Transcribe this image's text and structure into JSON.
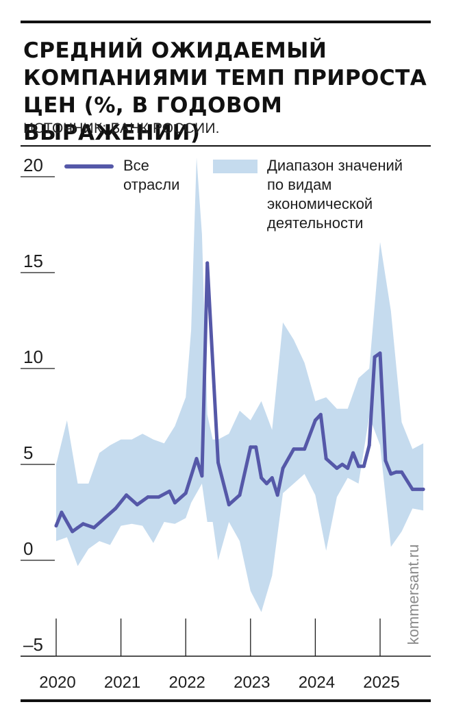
{
  "title": "СРЕДНИЙ ОЖИДАЕМЫЙ КОМПАНИЯМИ ТЕМП ПРИРОСТА ЦЕН (%, В ГОДОВОМ ВЫРАЖЕНИИ)",
  "source": "ИСТОЧНИК: БАНК РОССИИ.",
  "watermark": "kommersant.ru",
  "colors": {
    "line": "#5558a8",
    "band": "#c5dbee",
    "text": "#1e1e1e"
  },
  "chart_data": {
    "type": "line",
    "title": "СРЕДНИЙ ОЖИДАЕМЫЙ КОМПАНИЯМИ ТЕМП ПРИРОСТА ЦЕН (%, В ГОДОВОМ ВЫРАЖЕНИИ)",
    "xlabel": "",
    "ylabel": "",
    "x_ticks": [
      "2020",
      "2021",
      "2022",
      "2023",
      "2024",
      "2025"
    ],
    "y_ticks": [
      20,
      15,
      10,
      5,
      0,
      -5
    ],
    "y_tick_labels": [
      "20",
      "15",
      "10",
      "5",
      "0",
      "–5"
    ],
    "ylim": [
      -5,
      20
    ],
    "xlim": [
      "2020-01",
      "2025-09"
    ],
    "grid": false,
    "legend_position": "top",
    "series": [
      {
        "name": "Все отрасли",
        "legend_label_lines": [
          "Все",
          "отрасли"
        ],
        "kind": "line",
        "x": [
          "2020-01",
          "2020-02",
          "2020-04",
          "2020-05",
          "2020-06",
          "2020-08",
          "2020-10",
          "2020-12",
          "2021-02",
          "2021-04",
          "2021-06",
          "2021-08",
          "2021-10",
          "2021-11",
          "2022-01",
          "2022-03",
          "2022-04",
          "2022-05",
          "2022-07",
          "2022-09",
          "2022-11",
          "2023-01",
          "2023-02",
          "2023-03",
          "2023-04",
          "2023-05",
          "2023-06",
          "2023-07",
          "2023-09",
          "2023-11",
          "2024-01",
          "2024-02",
          "2024-03",
          "2024-05",
          "2024-06",
          "2024-07",
          "2024-08",
          "2024-09",
          "2024-10",
          "2024-11",
          "2024-12",
          "2025-01",
          "2025-02",
          "2025-03",
          "2025-04",
          "2025-05",
          "2025-07",
          "2025-09"
        ],
        "y": [
          1.8,
          2.5,
          1.5,
          1.7,
          1.9,
          1.7,
          2.2,
          2.7,
          3.4,
          2.9,
          3.3,
          3.3,
          3.6,
          3.0,
          3.5,
          5.3,
          4.4,
          15.5,
          5.1,
          2.9,
          3.4,
          5.9,
          5.9,
          4.3,
          4.0,
          4.3,
          3.4,
          4.8,
          5.8,
          5.8,
          7.3,
          7.6,
          5.3,
          4.8,
          5.0,
          4.8,
          5.6,
          4.9,
          4.9,
          6.0,
          10.6,
          10.8,
          5.2,
          4.5,
          4.6,
          4.6,
          3.7,
          3.7
        ]
      },
      {
        "name": "Диапазон значений по видам экономической деятельности",
        "legend_label_lines": [
          "Диапазон значений",
          "по видам",
          "экономической",
          "деятельности"
        ],
        "kind": "range",
        "x": [
          "2020-01",
          "2020-03",
          "2020-05",
          "2020-07",
          "2020-09",
          "2020-11",
          "2021-01",
          "2021-03",
          "2021-05",
          "2021-07",
          "2021-09",
          "2021-11",
          "2022-01",
          "2022-02",
          "2022-03",
          "2022-04",
          "2022-05",
          "2022-06",
          "2022-07",
          "2022-09",
          "2022-11",
          "2023-01",
          "2023-03",
          "2023-05",
          "2023-07",
          "2023-09",
          "2023-11",
          "2024-01",
          "2024-03",
          "2024-05",
          "2024-07",
          "2024-09",
          "2024-11",
          "2025-01",
          "2025-03",
          "2025-05",
          "2025-07",
          "2025-09"
        ],
        "low": [
          1.0,
          1.2,
          -0.3,
          0.6,
          1.0,
          0.8,
          1.8,
          1.9,
          1.8,
          0.9,
          2.0,
          1.9,
          2.2,
          3.0,
          3.5,
          4.0,
          2.0,
          2.0,
          0.0,
          2.0,
          1.0,
          -1.6,
          -2.7,
          -0.8,
          3.5,
          4.0,
          4.5,
          3.4,
          0.5,
          3.3,
          4.3,
          4.0,
          7.5,
          6.0,
          0.7,
          1.5,
          2.7,
          2.6
        ],
        "high": [
          5.0,
          7.3,
          4.0,
          4.0,
          5.6,
          6.0,
          6.3,
          6.3,
          6.6,
          6.3,
          6.1,
          7.0,
          8.5,
          12.0,
          21.0,
          17.0,
          7.6,
          6.3,
          6.3,
          6.6,
          7.8,
          7.3,
          8.3,
          6.8,
          12.4,
          11.5,
          10.3,
          8.3,
          8.5,
          7.9,
          7.9,
          9.5,
          10.0,
          16.6,
          13.0,
          7.2,
          5.8,
          6.1
        ]
      }
    ]
  }
}
